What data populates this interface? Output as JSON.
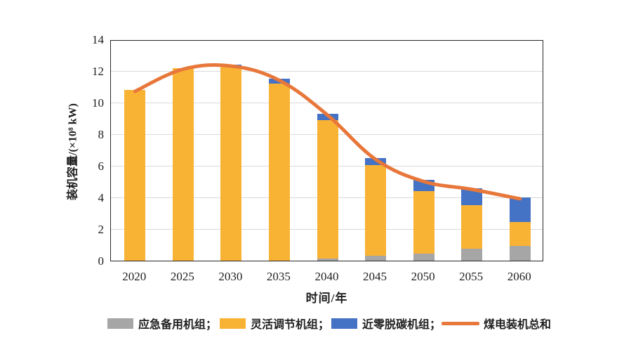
{
  "chart_data": {
    "type": "bar",
    "subtype": "stacked-bars-with-total-line",
    "title": "",
    "categories": [
      "2020",
      "2025",
      "2030",
      "2035",
      "2040",
      "2045",
      "2050",
      "2055",
      "2060"
    ],
    "series": [
      {
        "name": "应急备用机组",
        "type": "bar",
        "color": "#A6A6A6",
        "values": [
          0,
          0,
          0,
          0,
          0.15,
          0.3,
          0.45,
          0.75,
          0.95
        ]
      },
      {
        "name": "灵活调节机组",
        "type": "bar",
        "color": "#F9B334",
        "values": [
          10.8,
          12.2,
          12.3,
          11.2,
          8.75,
          5.75,
          3.95,
          2.75,
          1.5
        ]
      },
      {
        "name": "近零脱碳机组",
        "type": "bar",
        "color": "#4472C4",
        "values": [
          0,
          0,
          0.1,
          0.3,
          0.4,
          0.45,
          0.7,
          1.1,
          1.55
        ]
      },
      {
        "name": "煤电装机总和",
        "type": "line",
        "color": "#E8773B",
        "values": [
          10.8,
          12.2,
          12.4,
          11.5,
          9.3,
          6.5,
          5.1,
          4.6,
          4.0
        ]
      }
    ],
    "xlabel": "时间/年",
    "ylabel": "装机容量/(×10⁸ kW)",
    "ylim": [
      0,
      14
    ],
    "yticks": [
      0,
      2,
      4,
      6,
      8,
      10,
      12,
      14
    ],
    "grid": "horizontal",
    "grid_color": "#D9D9D9",
    "axis_border_color": "#262626",
    "legend_position": "bottom",
    "legend_labels": [
      "应急备用机组；",
      "灵活调节机组；",
      "近零脱碳机组；",
      "煤电装机总和"
    ]
  }
}
